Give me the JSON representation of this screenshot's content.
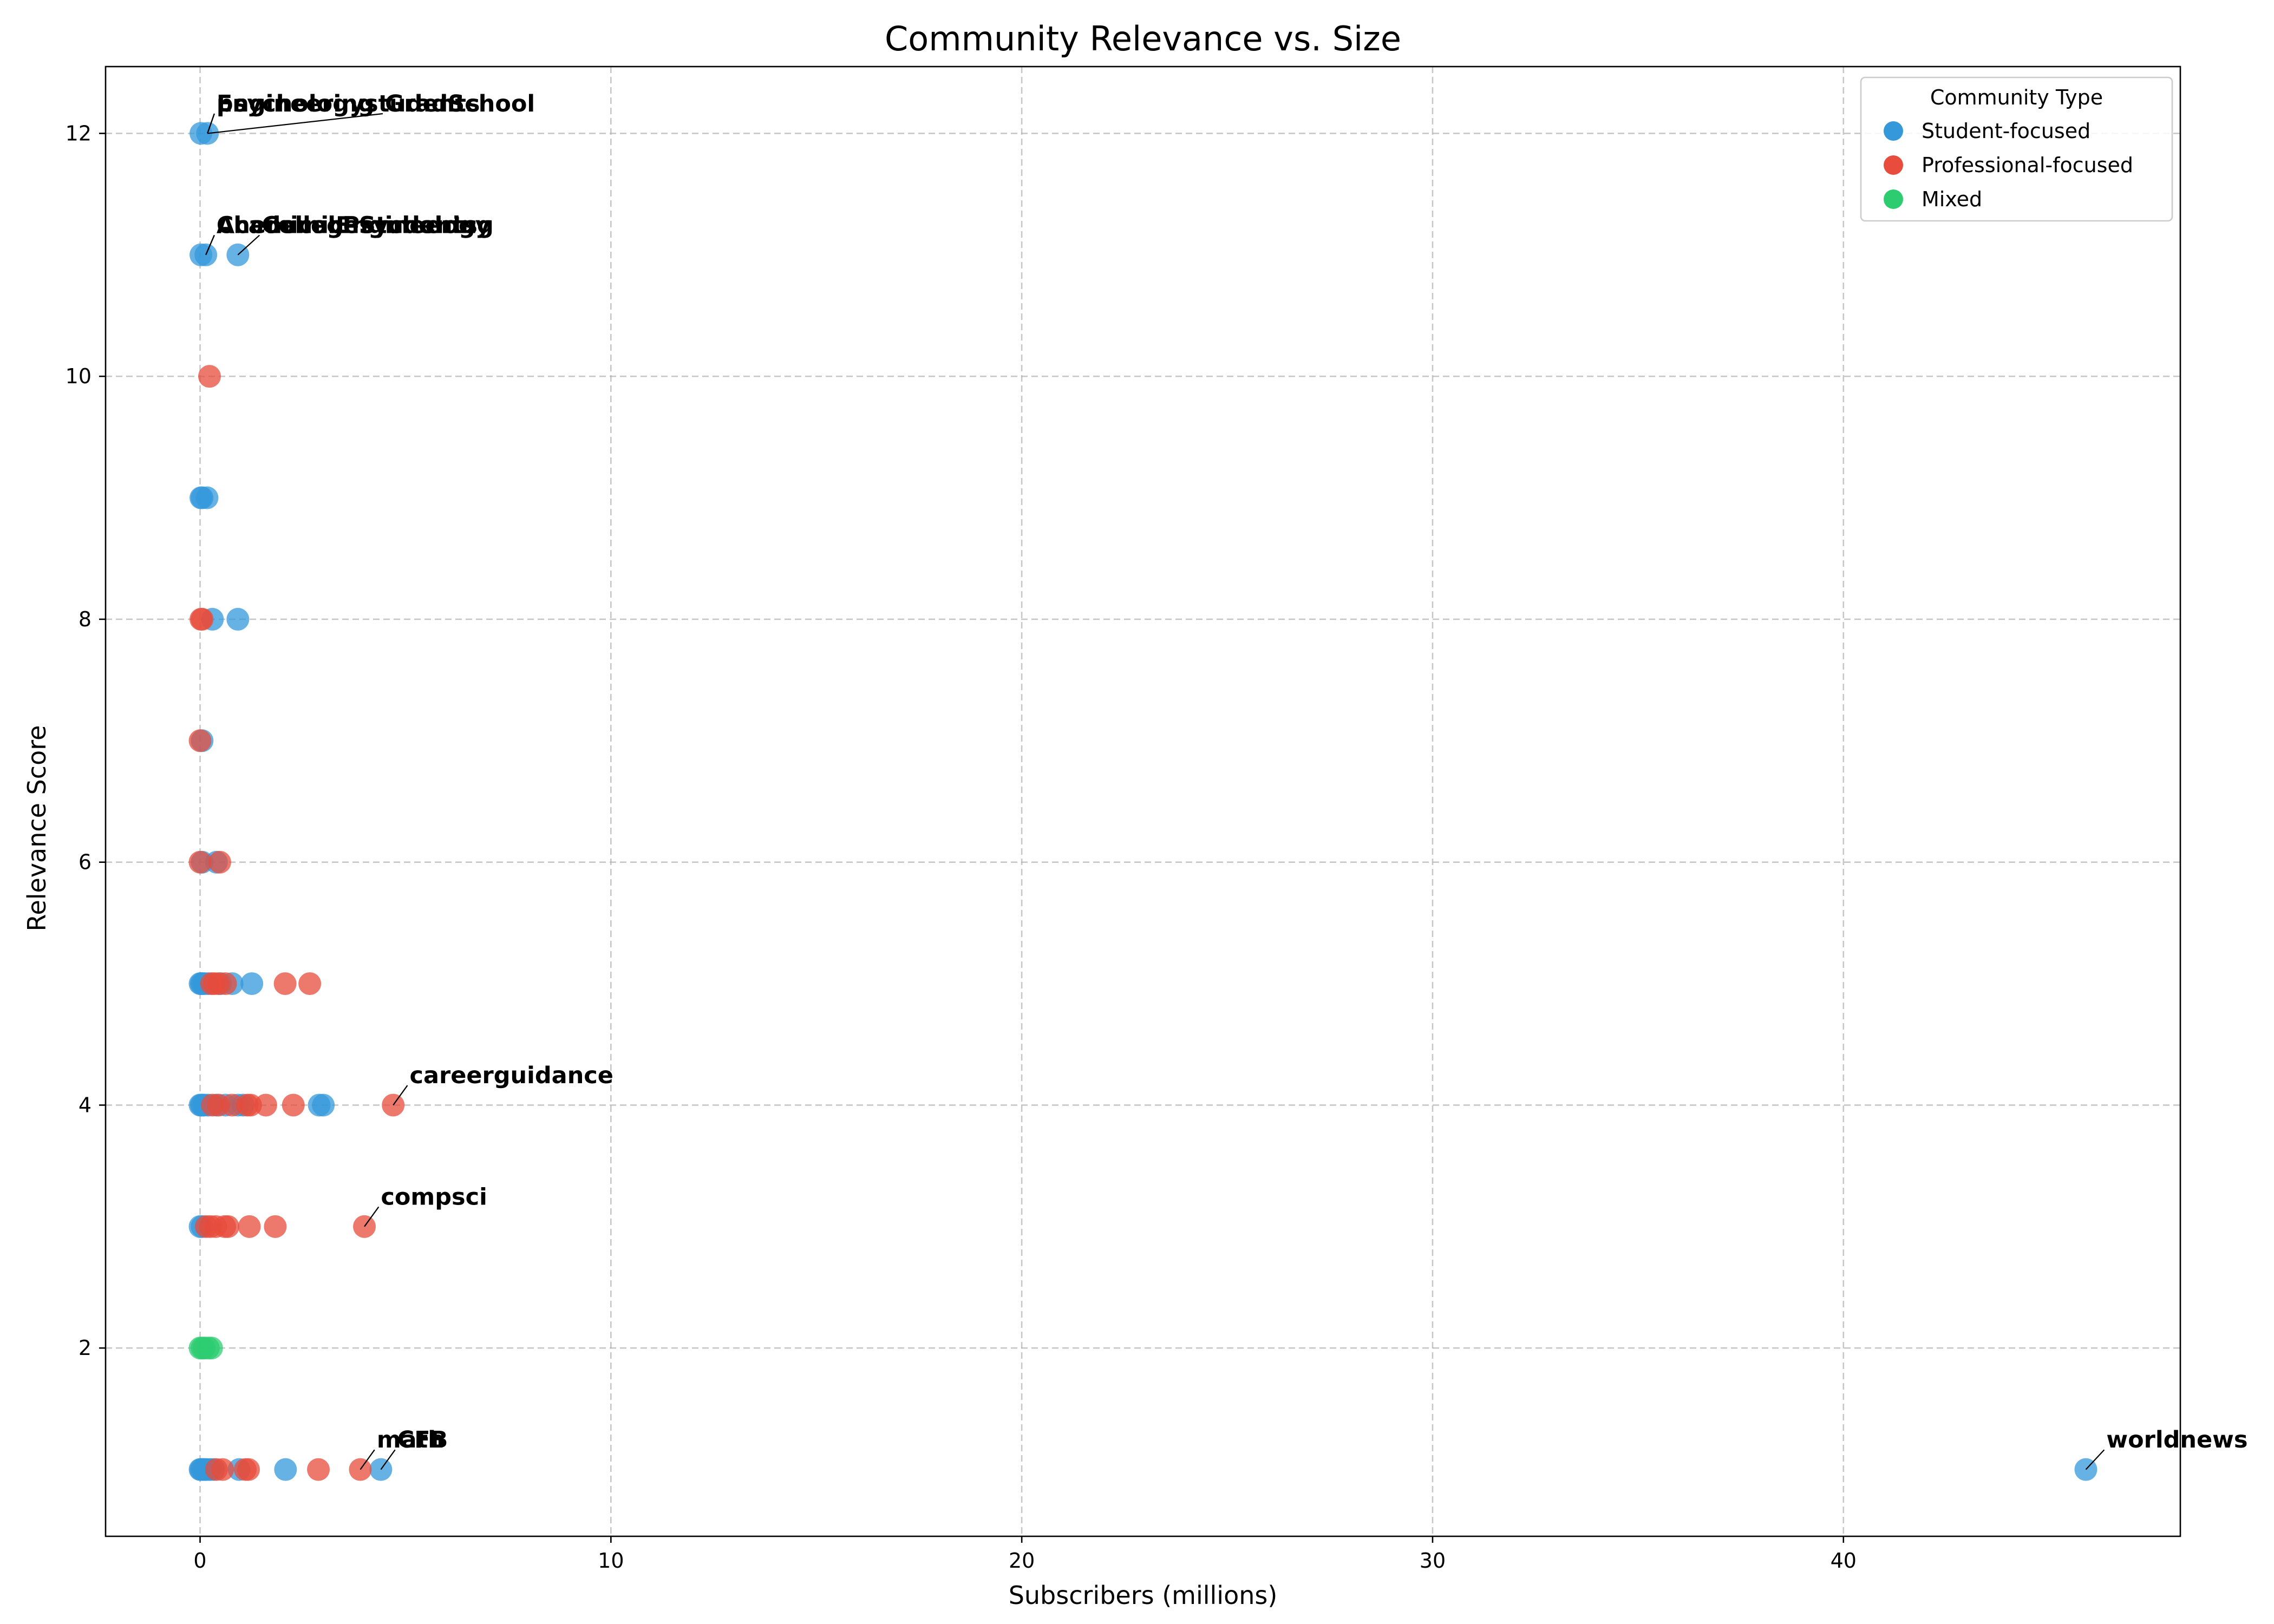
{
  "chart_data": {
    "type": "scatter",
    "title": "Community Relevance vs. Size",
    "xlabel": "Subscribers (millions)",
    "ylabel": "Relevance Score",
    "xlim": [
      -2.3,
      48.2
    ],
    "ylim": [
      0.45,
      12.55
    ],
    "xticks": [
      0,
      10,
      20,
      30,
      40
    ],
    "yticks": [
      2,
      4,
      6,
      8,
      10,
      12
    ],
    "grid": true,
    "legend": {
      "title": "Community Type",
      "placement": "upper right"
    },
    "series": [
      {
        "name": "Student-focused",
        "color": "#3498db",
        "points": [
          [
            0.02,
            12
          ],
          [
            0.18,
            12
          ],
          [
            0.02,
            11
          ],
          [
            0.14,
            11
          ],
          [
            0.92,
            11
          ],
          [
            0.02,
            9
          ],
          [
            0.05,
            9
          ],
          [
            0.17,
            9
          ],
          [
            0.3,
            8
          ],
          [
            0.92,
            8
          ],
          [
            0.05,
            7
          ],
          [
            0.05,
            6
          ],
          [
            0.4,
            6
          ],
          [
            0.0,
            5
          ],
          [
            0.03,
            5
          ],
          [
            0.06,
            5
          ],
          [
            0.1,
            5
          ],
          [
            0.2,
            5
          ],
          [
            0.5,
            5
          ],
          [
            0.78,
            5
          ],
          [
            1.26,
            5
          ],
          [
            0.0,
            4
          ],
          [
            0.03,
            4
          ],
          [
            0.06,
            4
          ],
          [
            0.1,
            4
          ],
          [
            0.2,
            4
          ],
          [
            0.4,
            4
          ],
          [
            0.62,
            4
          ],
          [
            0.92,
            4
          ],
          [
            1.05,
            4
          ],
          [
            2.9,
            4
          ],
          [
            3.0,
            4
          ],
          [
            0.0,
            3
          ],
          [
            0.05,
            3
          ],
          [
            0.0,
            1
          ],
          [
            0.02,
            1
          ],
          [
            0.05,
            1
          ],
          [
            0.08,
            1
          ],
          [
            0.12,
            1
          ],
          [
            0.18,
            1
          ],
          [
            0.25,
            1
          ],
          [
            0.33,
            1
          ],
          [
            0.95,
            1
          ],
          [
            2.08,
            1
          ],
          [
            4.4,
            1
          ],
          [
            45.9,
            1
          ]
        ]
      },
      {
        "name": "Professional-focused",
        "color": "#e74c3c",
        "points": [
          [
            0.23,
            10
          ],
          [
            0.02,
            8
          ],
          [
            0.05,
            8
          ],
          [
            0.0,
            7
          ],
          [
            0.0,
            6
          ],
          [
            0.48,
            6
          ],
          [
            0.28,
            5
          ],
          [
            0.35,
            5
          ],
          [
            0.45,
            5
          ],
          [
            0.62,
            5
          ],
          [
            2.07,
            5
          ],
          [
            2.67,
            5
          ],
          [
            0.3,
            4
          ],
          [
            0.45,
            4
          ],
          [
            0.78,
            4
          ],
          [
            1.15,
            4
          ],
          [
            1.23,
            4
          ],
          [
            1.6,
            4
          ],
          [
            2.27,
            4
          ],
          [
            4.7,
            4
          ],
          [
            0.15,
            3
          ],
          [
            0.25,
            3
          ],
          [
            0.38,
            3
          ],
          [
            0.6,
            3
          ],
          [
            0.68,
            3
          ],
          [
            1.2,
            3
          ],
          [
            1.83,
            3
          ],
          [
            4.0,
            3
          ],
          [
            0.4,
            1
          ],
          [
            0.55,
            1
          ],
          [
            1.1,
            1
          ],
          [
            1.18,
            1
          ],
          [
            2.88,
            1
          ],
          [
            3.9,
            1
          ]
        ]
      },
      {
        "name": "Mixed",
        "color": "#2ecc71",
        "points": [
          [
            0.0,
            2
          ],
          [
            0.05,
            2
          ],
          [
            0.1,
            2
          ],
          [
            0.2,
            2
          ],
          [
            0.28,
            2
          ]
        ]
      }
    ],
    "annotations": [
      {
        "text": "Engineering",
        "x": 0.18,
        "y": 12,
        "tx": 0.4,
        "ty": 12.18
      },
      {
        "text": "psychologystudents",
        "x": 0.18,
        "y": 12,
        "tx": 0.4,
        "ty": 12.18
      },
      {
        "text": "GradSchool",
        "x": 0.18,
        "y": 12,
        "tx": 4.5,
        "ty": 12.18
      },
      {
        "text": "ChemicalEngineering",
        "x": 0.14,
        "y": 11,
        "tx": 0.4,
        "ty": 11.18
      },
      {
        "text": "CollegeStudents",
        "x": 0.92,
        "y": 11,
        "tx": 1.5,
        "ty": 11.18
      },
      {
        "text": "AcademicPsychology",
        "x": 0.14,
        "y": 11,
        "tx": 0.4,
        "ty": 11.18
      },
      {
        "text": "careerguidance",
        "x": 4.7,
        "y": 4,
        "tx": 5.1,
        "ty": 4.18
      },
      {
        "text": "compsci",
        "x": 4.0,
        "y": 3,
        "tx": 4.4,
        "ty": 3.18
      },
      {
        "text": "math",
        "x": 3.9,
        "y": 1,
        "tx": 4.3,
        "ty": 1.18
      },
      {
        "text": "CFB",
        "x": 4.4,
        "y": 1,
        "tx": 4.8,
        "ty": 1.18
      },
      {
        "text": "worldnews",
        "x": 45.9,
        "y": 1,
        "tx": 46.4,
        "ty": 1.18
      }
    ]
  }
}
